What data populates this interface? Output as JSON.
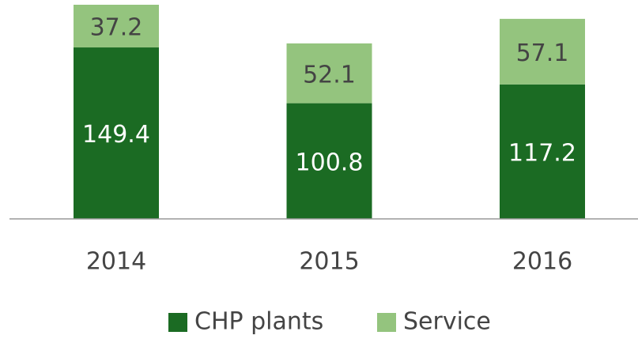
{
  "chart_data": {
    "type": "stacked_bar",
    "categories": [
      "2014",
      "2015",
      "2016"
    ],
    "series": [
      {
        "name": "CHP plants",
        "color": "#1b6b23",
        "values": [
          149.4,
          100.8,
          117.2
        ]
      },
      {
        "name": "Service",
        "color": "#94c47e",
        "values": [
          37.2,
          52.1,
          57.1
        ]
      }
    ]
  }
}
